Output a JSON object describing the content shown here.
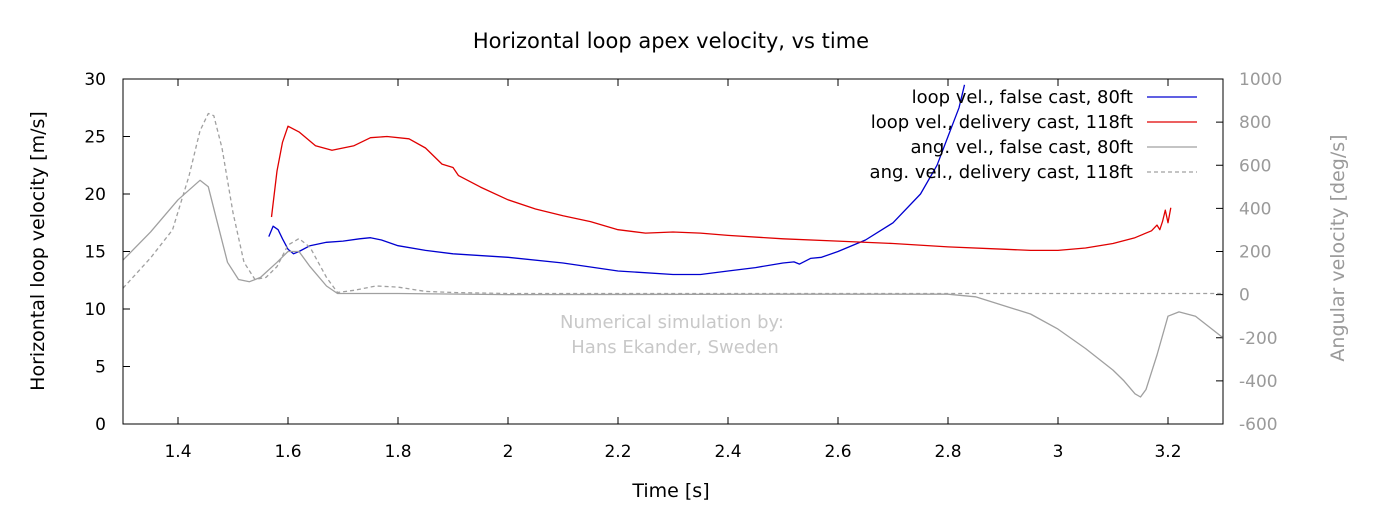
{
  "chart_data": {
    "type": "line",
    "title": "Horizontal loop apex velocity, vs time",
    "xlabel": "Time [s]",
    "ylabel": "Horizontal loop velocity [m/s]",
    "y2label": "Angular velocity [deg/s]",
    "xlim": [
      1.3,
      3.3
    ],
    "ylim": [
      0,
      30
    ],
    "y2lim": [
      -600,
      1000
    ],
    "xticks": [
      1.4,
      1.6,
      1.8,
      2,
      2.2,
      2.4,
      2.6,
      2.8,
      3,
      3.2
    ],
    "yticks": [
      0,
      5,
      10,
      15,
      20,
      25,
      30
    ],
    "y2ticks": [
      -600,
      -400,
      -200,
      0,
      200,
      400,
      600,
      800,
      1000
    ],
    "legend_position": "top-right",
    "annotation": [
      "Numerical simulation by:",
      "Hans Ekander, Sweden"
    ],
    "series": [
      {
        "name": "loop vel., false cast, 80ft",
        "axis": "left",
        "color": "#0000d0",
        "dash": "solid",
        "points": [
          [
            1.565,
            16.3
          ],
          [
            1.573,
            17.2
          ],
          [
            1.582,
            16.9
          ],
          [
            1.59,
            16.1
          ],
          [
            1.6,
            15.2
          ],
          [
            1.61,
            14.8
          ],
          [
            1.62,
            15.0
          ],
          [
            1.64,
            15.5
          ],
          [
            1.67,
            15.8
          ],
          [
            1.7,
            15.9
          ],
          [
            1.73,
            16.1
          ],
          [
            1.75,
            16.2
          ],
          [
            1.77,
            16.0
          ],
          [
            1.8,
            15.5
          ],
          [
            1.85,
            15.1
          ],
          [
            1.9,
            14.8
          ],
          [
            2.0,
            14.5
          ],
          [
            2.1,
            14.0
          ],
          [
            2.2,
            13.3
          ],
          [
            2.3,
            13.0
          ],
          [
            2.35,
            13.0
          ],
          [
            2.4,
            13.3
          ],
          [
            2.45,
            13.6
          ],
          [
            2.5,
            14.0
          ],
          [
            2.52,
            14.1
          ],
          [
            2.53,
            13.9
          ],
          [
            2.55,
            14.4
          ],
          [
            2.57,
            14.5
          ],
          [
            2.6,
            15.0
          ],
          [
            2.65,
            16.0
          ],
          [
            2.7,
            17.5
          ],
          [
            2.75,
            20.0
          ],
          [
            2.78,
            22.5
          ],
          [
            2.8,
            25.0
          ],
          [
            2.82,
            27.5
          ],
          [
            2.83,
            29.5
          ]
        ]
      },
      {
        "name": "loop vel., delivery cast, 118ft",
        "axis": "left",
        "color": "#e00000",
        "dash": "solid",
        "points": [
          [
            1.57,
            18.0
          ],
          [
            1.58,
            22.0
          ],
          [
            1.59,
            24.5
          ],
          [
            1.6,
            25.9
          ],
          [
            1.62,
            25.4
          ],
          [
            1.65,
            24.2
          ],
          [
            1.68,
            23.8
          ],
          [
            1.72,
            24.2
          ],
          [
            1.75,
            24.9
          ],
          [
            1.78,
            25.0
          ],
          [
            1.82,
            24.8
          ],
          [
            1.85,
            24.0
          ],
          [
            1.88,
            22.6
          ],
          [
            1.9,
            22.3
          ],
          [
            1.91,
            21.6
          ],
          [
            1.95,
            20.6
          ],
          [
            2.0,
            19.5
          ],
          [
            2.05,
            18.7
          ],
          [
            2.1,
            18.1
          ],
          [
            2.15,
            17.6
          ],
          [
            2.2,
            16.9
          ],
          [
            2.25,
            16.6
          ],
          [
            2.3,
            16.7
          ],
          [
            2.35,
            16.6
          ],
          [
            2.4,
            16.4
          ],
          [
            2.5,
            16.1
          ],
          [
            2.6,
            15.9
          ],
          [
            2.7,
            15.7
          ],
          [
            2.8,
            15.4
          ],
          [
            2.9,
            15.2
          ],
          [
            2.95,
            15.1
          ],
          [
            3.0,
            15.1
          ],
          [
            3.05,
            15.3
          ],
          [
            3.1,
            15.7
          ],
          [
            3.14,
            16.2
          ],
          [
            3.17,
            16.8
          ],
          [
            3.18,
            17.3
          ],
          [
            3.185,
            16.9
          ],
          [
            3.19,
            17.6
          ],
          [
            3.195,
            18.6
          ],
          [
            3.2,
            17.5
          ],
          [
            3.205,
            18.8
          ]
        ]
      },
      {
        "name": "ang. vel., false cast, 80ft",
        "axis": "right",
        "color": "#a0a0a0",
        "dash": "solid",
        "points": [
          [
            1.3,
            160
          ],
          [
            1.35,
            290
          ],
          [
            1.4,
            440
          ],
          [
            1.44,
            530
          ],
          [
            1.455,
            500
          ],
          [
            1.47,
            350
          ],
          [
            1.49,
            150
          ],
          [
            1.51,
            70
          ],
          [
            1.53,
            60
          ],
          [
            1.55,
            80
          ],
          [
            1.58,
            150
          ],
          [
            1.6,
            200
          ],
          [
            1.62,
            200
          ],
          [
            1.64,
            130
          ],
          [
            1.67,
            40
          ],
          [
            1.69,
            5
          ],
          [
            1.75,
            5
          ],
          [
            1.8,
            5
          ],
          [
            2.0,
            0
          ],
          [
            2.5,
            2
          ],
          [
            2.8,
            2
          ],
          [
            2.85,
            -10
          ],
          [
            2.95,
            -90
          ],
          [
            3.0,
            -160
          ],
          [
            3.05,
            -250
          ],
          [
            3.1,
            -350
          ],
          [
            3.12,
            -400
          ],
          [
            3.14,
            -460
          ],
          [
            3.15,
            -475
          ],
          [
            3.16,
            -440
          ],
          [
            3.18,
            -280
          ],
          [
            3.2,
            -100
          ],
          [
            3.22,
            -80
          ],
          [
            3.25,
            -100
          ],
          [
            3.3,
            -200
          ]
        ]
      },
      {
        "name": "ang. vel., delivery cast, 118ft",
        "axis": "right",
        "color": "#a0a0a0",
        "dash": "dashed",
        "points": [
          [
            1.3,
            30
          ],
          [
            1.35,
            170
          ],
          [
            1.39,
            300
          ],
          [
            1.42,
            550
          ],
          [
            1.44,
            760
          ],
          [
            1.455,
            840
          ],
          [
            1.465,
            830
          ],
          [
            1.48,
            680
          ],
          [
            1.5,
            380
          ],
          [
            1.52,
            150
          ],
          [
            1.54,
            70
          ],
          [
            1.56,
            80
          ],
          [
            1.58,
            130
          ],
          [
            1.6,
            230
          ],
          [
            1.62,
            260
          ],
          [
            1.64,
            220
          ],
          [
            1.67,
            80
          ],
          [
            1.69,
            10
          ],
          [
            1.72,
            20
          ],
          [
            1.76,
            40
          ],
          [
            1.8,
            35
          ],
          [
            1.85,
            15
          ],
          [
            1.9,
            10
          ],
          [
            2.0,
            5
          ],
          [
            2.5,
            5
          ],
          [
            3.0,
            5
          ],
          [
            3.3,
            5
          ]
        ]
      }
    ]
  }
}
